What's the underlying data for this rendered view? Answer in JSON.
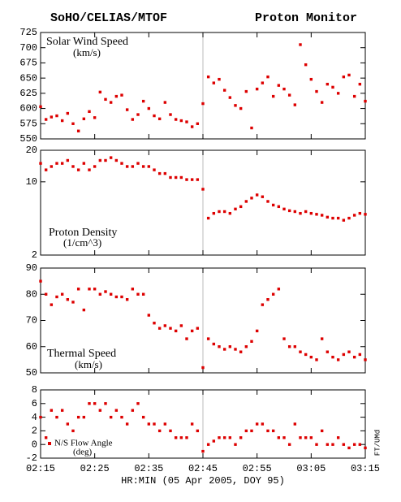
{
  "chart_data": [
    {
      "type": "scatter",
      "title": "SoHO/CELIAS/MTOF",
      "subtitle": "Proton Monitor",
      "ylabel": "Solar Wind Speed",
      "yunit": "(km/s)",
      "color": "#dd0000",
      "vline": "02:45",
      "x": [
        "02:15",
        "02:16",
        "02:17",
        "02:18",
        "02:19",
        "02:20",
        "02:21",
        "02:22",
        "02:23",
        "02:24",
        "02:25",
        "02:26",
        "02:27",
        "02:28",
        "02:29",
        "02:30",
        "02:31",
        "02:32",
        "02:33",
        "02:34",
        "02:35",
        "02:36",
        "02:37",
        "02:38",
        "02:39",
        "02:40",
        "02:41",
        "02:42",
        "02:43",
        "02:44",
        "02:45",
        "02:46",
        "02:47",
        "02:48",
        "02:49",
        "02:50",
        "02:51",
        "02:52",
        "02:53",
        "02:54",
        "02:55",
        "02:56",
        "02:57",
        "02:58",
        "02:59",
        "03:00",
        "03:01",
        "03:02",
        "03:03",
        "03:04",
        "03:05",
        "03:06",
        "03:07",
        "03:08",
        "03:09",
        "03:10",
        "03:11",
        "03:12",
        "03:13",
        "03:14",
        "03:15"
      ],
      "values": [
        603,
        582,
        586,
        588,
        580,
        592,
        575,
        563,
        583,
        595,
        585,
        627,
        615,
        610,
        620,
        622,
        598,
        582,
        590,
        612,
        600,
        588,
        583,
        610,
        590,
        582,
        580,
        578,
        570,
        575,
        608,
        652,
        642,
        648,
        630,
        618,
        605,
        600,
        628,
        568,
        632,
        642,
        652,
        620,
        638,
        632,
        622,
        606,
        705,
        672,
        648,
        628,
        610,
        640,
        635,
        625,
        652,
        655,
        620,
        640,
        612
      ],
      "xlim": [
        "02:15",
        "03:15"
      ],
      "ylim": [
        550,
        725
      ],
      "yticks": [
        550,
        575,
        600,
        625,
        650,
        675,
        700,
        725
      ]
    },
    {
      "type": "scatter",
      "ylabel": "Proton Density",
      "yunit": "(1/cm^3)",
      "color": "#dd0000",
      "log_y": true,
      "x": [
        "02:15",
        "02:16",
        "02:17",
        "02:18",
        "02:19",
        "02:20",
        "02:21",
        "02:22",
        "02:23",
        "02:24",
        "02:25",
        "02:26",
        "02:27",
        "02:28",
        "02:29",
        "02:30",
        "02:31",
        "02:32",
        "02:33",
        "02:34",
        "02:35",
        "02:36",
        "02:37",
        "02:38",
        "02:39",
        "02:40",
        "02:41",
        "02:42",
        "02:43",
        "02:44",
        "02:45",
        "02:46",
        "02:47",
        "02:48",
        "02:49",
        "02:50",
        "02:51",
        "02:52",
        "02:53",
        "02:54",
        "02:55",
        "02:56",
        "02:57",
        "02:58",
        "02:59",
        "03:00",
        "03:01",
        "03:02",
        "03:03",
        "03:04",
        "03:05",
        "03:06",
        "03:07",
        "03:08",
        "03:09",
        "03:10",
        "03:11",
        "03:12",
        "03:13",
        "03:14",
        "03:15"
      ],
      "values": [
        15,
        13,
        14,
        15,
        15,
        16,
        14,
        13,
        15,
        13,
        14,
        16,
        16,
        17,
        16,
        15,
        14,
        14,
        15,
        14,
        14,
        13,
        12,
        12,
        11,
        11,
        11,
        10.5,
        10.5,
        10.5,
        8.5,
        4.5,
        5,
        5.2,
        5.2,
        5.0,
        5.5,
        5.8,
        6.5,
        7,
        7.5,
        7.2,
        6.5,
        6.0,
        5.8,
        5.5,
        5.3,
        5.2,
        5.0,
        5.2,
        5.0,
        4.9,
        4.8,
        4.6,
        4.5,
        4.5,
        4.3,
        4.5,
        4.8,
        5.0,
        4.9
      ],
      "xlim": [
        "02:15",
        "03:15"
      ],
      "ylim": [
        2,
        20
      ],
      "yticks": [
        2,
        10,
        20
      ]
    },
    {
      "type": "scatter",
      "ylabel": "Thermal Speed",
      "yunit": "(km/s)",
      "color": "#dd0000",
      "x": [
        "02:15",
        "02:16",
        "02:17",
        "02:18",
        "02:19",
        "02:20",
        "02:21",
        "02:22",
        "02:23",
        "02:24",
        "02:25",
        "02:26",
        "02:27",
        "02:28",
        "02:29",
        "02:30",
        "02:31",
        "02:32",
        "02:33",
        "02:34",
        "02:35",
        "02:36",
        "02:37",
        "02:38",
        "02:39",
        "02:40",
        "02:41",
        "02:42",
        "02:43",
        "02:44",
        "02:45",
        "02:46",
        "02:47",
        "02:48",
        "02:49",
        "02:50",
        "02:51",
        "02:52",
        "02:53",
        "02:54",
        "02:55",
        "02:56",
        "02:57",
        "02:58",
        "02:59",
        "03:00",
        "03:01",
        "03:02",
        "03:03",
        "03:04",
        "03:05",
        "03:06",
        "03:07",
        "03:08",
        "03:09",
        "03:10",
        "03:11",
        "03:12",
        "03:13",
        "03:14",
        "03:15"
      ],
      "values": [
        85,
        80,
        76,
        79,
        80,
        78,
        77,
        82,
        74,
        82,
        82,
        80,
        81,
        80,
        79,
        79,
        78,
        82,
        80,
        80,
        72,
        69,
        67,
        68,
        67,
        66,
        68,
        63,
        66,
        67,
        52,
        63,
        61,
        60,
        59,
        60,
        59,
        58,
        60,
        62,
        66,
        76,
        78,
        80,
        82,
        63,
        60,
        60,
        58,
        57,
        56,
        55,
        63,
        58,
        56,
        55,
        57,
        58,
        56,
        57,
        55
      ],
      "xlim": [
        "02:15",
        "03:15"
      ],
      "ylim": [
        50,
        90
      ],
      "yticks": [
        50,
        60,
        70,
        80,
        90
      ]
    },
    {
      "type": "scatter",
      "ylabel": "N/S Flow Angle",
      "yunit": "(deg)",
      "color": "#dd0000",
      "xlabel": "HR:MIN (05 Apr 2005, DOY 95)",
      "annotation": "FT/UMd",
      "x": [
        "02:15",
        "02:16",
        "02:17",
        "02:18",
        "02:19",
        "02:20",
        "02:21",
        "02:22",
        "02:23",
        "02:24",
        "02:25",
        "02:26",
        "02:27",
        "02:28",
        "02:29",
        "02:30",
        "02:31",
        "02:32",
        "02:33",
        "02:34",
        "02:35",
        "02:36",
        "02:37",
        "02:38",
        "02:39",
        "02:40",
        "02:41",
        "02:42",
        "02:43",
        "02:44",
        "02:45",
        "02:46",
        "02:47",
        "02:48",
        "02:49",
        "02:50",
        "02:51",
        "02:52",
        "02:53",
        "02:54",
        "02:55",
        "02:56",
        "02:57",
        "02:58",
        "02:59",
        "03:00",
        "03:01",
        "03:02",
        "03:03",
        "03:04",
        "03:05",
        "03:06",
        "03:07",
        "03:08",
        "03:09",
        "03:10",
        "03:11",
        "03:12",
        "03:13",
        "03:14",
        "03:15"
      ],
      "values": [
        4,
        1,
        5,
        4,
        5,
        3,
        2,
        4,
        4,
        6,
        6,
        5,
        6,
        4,
        5,
        4,
        3,
        5,
        6,
        4,
        3,
        3,
        2,
        3,
        2,
        1,
        1,
        1,
        3,
        2,
        -1,
        0,
        0.5,
        1,
        1,
        1,
        0,
        1,
        2,
        2,
        3,
        3,
        2,
        2,
        1,
        1,
        0,
        3,
        1,
        1,
        1,
        0,
        2,
        0,
        0,
        1,
        0,
        -0.5,
        0,
        0,
        -0.5
      ],
      "xlim": [
        "02:15",
        "03:15"
      ],
      "ylim": [
        -2,
        8
      ],
      "yticks": [
        -2,
        0,
        2,
        4,
        6,
        8
      ],
      "xticks": [
        "02:15",
        "02:25",
        "02:35",
        "02:45",
        "02:55",
        "03:05",
        "03:15"
      ]
    }
  ]
}
